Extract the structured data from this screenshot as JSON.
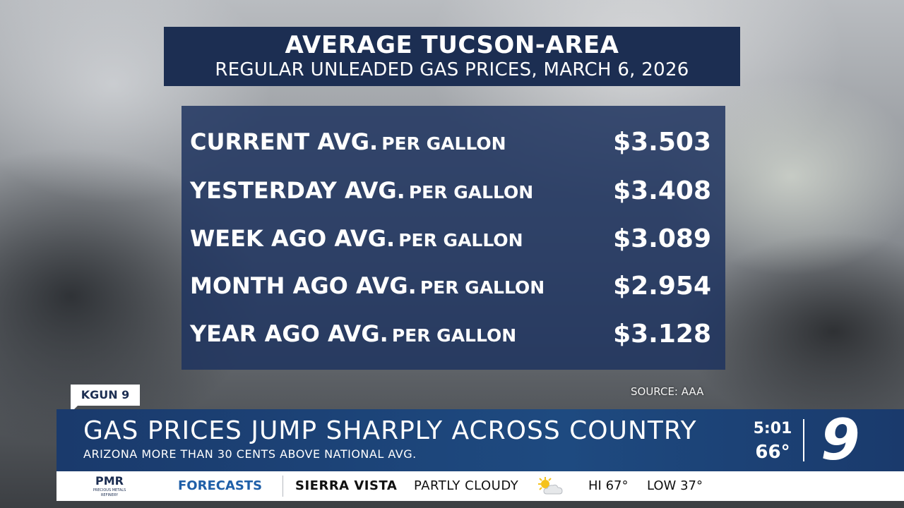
{
  "graphic": {
    "title": "AVERAGE TUCSON-AREA",
    "subtitle": "REGULAR UNLEADED GAS PRICES, MARCH 6, 2026",
    "rows": [
      {
        "label": "CURRENT AVG.",
        "unit": "PER GALLON",
        "value": "$3.503"
      },
      {
        "label": "YESTERDAY AVG.",
        "unit": "PER GALLON",
        "value": "$3.408"
      },
      {
        "label": "WEEK AGO AVG.",
        "unit": "PER GALLON",
        "value": "$3.089"
      },
      {
        "label": "MONTH AGO AVG.",
        "unit": "PER GALLON",
        "value": "$2.954"
      },
      {
        "label": "YEAR AGO AVG.",
        "unit": "PER GALLON",
        "value": "$3.128"
      }
    ],
    "source": "SOURCE: AAA"
  },
  "lower_third": {
    "brand_tag": "KGUN 9",
    "headline": "GAS PRICES JUMP SHARPLY ACROSS COUNTRY",
    "subhead": "ARIZONA MORE THAN 30 CENTS ABOVE NATIONAL AVG.",
    "time": "5:01",
    "temp": "66°",
    "station_logo": "9"
  },
  "ticker": {
    "sponsor": "PMR",
    "sponsor_sub": "PRECIOUS METALS REFINERY",
    "section": "FORECASTS",
    "location": "SIERRA VISTA",
    "condition": "PARTLY CLOUDY",
    "condition_icon": "partly-cloudy-icon",
    "high": "HI 67°",
    "low": "LOW 37°"
  },
  "colors": {
    "navy": "#1c2e52",
    "panel_blue": "#1e345f",
    "lower_third_blue": "#1e4a80",
    "forecast_blue": "#1f5fa8",
    "sun_yellow": "#f5c21b"
  }
}
